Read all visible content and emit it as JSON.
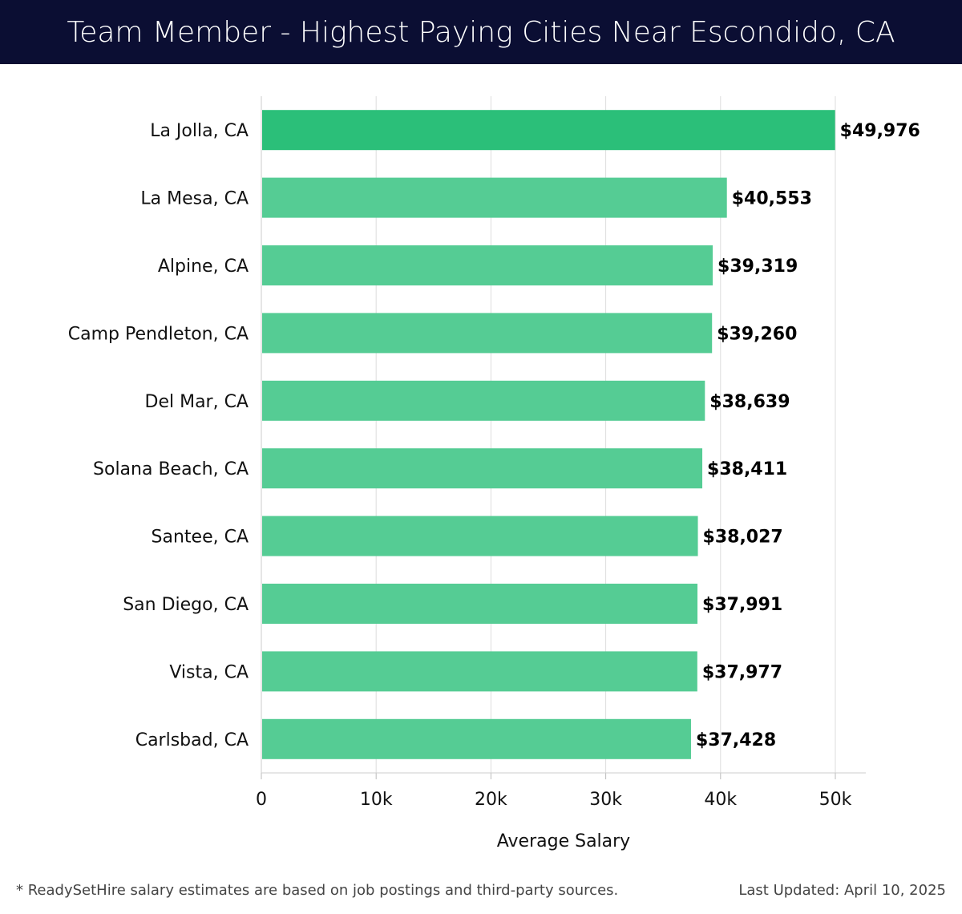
{
  "header": {
    "title": "Team Member - Highest Paying Cities Near Escondido, CA"
  },
  "colors": {
    "header_bg": "#0b0e33",
    "top_bar": "#2bbf79",
    "bar": "#55cc94",
    "grid": "#dddddd"
  },
  "chart_data": {
    "type": "bar",
    "orientation": "horizontal",
    "title": "Team Member - Highest Paying Cities Near Escondido, CA",
    "xlabel": "Average Salary",
    "ylabel": "",
    "categories": [
      "La Jolla, CA",
      "La Mesa, CA",
      "Alpine, CA",
      "Camp Pendleton, CA",
      "Del Mar, CA",
      "Solana Beach, CA",
      "Santee, CA",
      "San Diego, CA",
      "Vista, CA",
      "Carlsbad, CA"
    ],
    "values": [
      49976,
      40553,
      39319,
      39260,
      38639,
      38411,
      38027,
      37991,
      37977,
      37428
    ],
    "value_labels": [
      "$49,976",
      "$40,553",
      "$39,319",
      "$39,260",
      "$38,639",
      "$38,411",
      "$38,027",
      "$37,991",
      "$37,977",
      "$37,428"
    ],
    "xticks": [
      0,
      10000,
      20000,
      30000,
      40000,
      50000
    ],
    "xtick_labels": [
      "0",
      "10k",
      "20k",
      "30k",
      "40k",
      "50k"
    ],
    "xlim": [
      0,
      52600
    ],
    "grid": true,
    "legend": "none"
  },
  "footer": {
    "note": "* ReadySetHire salary estimates are based on job postings and third-party sources.",
    "updated": "Last Updated: April 10, 2025"
  }
}
